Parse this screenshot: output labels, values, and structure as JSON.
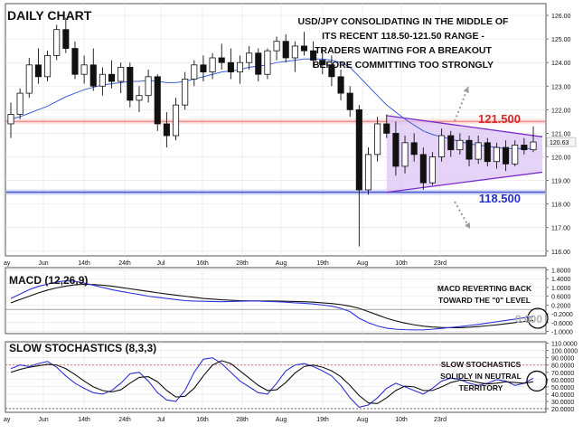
{
  "colors": {
    "frame": "#555555",
    "grid": "#e4e4e4",
    "bull_candle": "#ffffff",
    "bear_candle": "#111111",
    "ma_line": "#3c5ed8",
    "resistance": "#f28a8a",
    "support": "#4d5bd6",
    "triangle_fill": "#dcc6f4",
    "triangle_edge": "#7a2bc9",
    "macd_line": "#2d33d6",
    "signal_line": "#111111",
    "stoch_k": "#2d33d6",
    "stoch_d": "#111111",
    "overbought": "#e06060",
    "arrow": "#9a9a9a"
  },
  "chart_data": [
    {
      "type": "candlestick",
      "title": "DAILY CHART",
      "annotations": [
        "USD/JPY CONSOLIDATING IN THE MIDDLE OF",
        "ITS RECENT 118.50-121.50 RANGE -",
        "TRADERS WAITING FOR A BREAKOUT",
        "BEFORE COMMITTING TOO STRONGLY"
      ],
      "ylim": [
        115.8,
        126.5
      ],
      "y_ticks": [
        "126.00",
        "125.00",
        "124.00",
        "123.00",
        "122.00",
        "121.00",
        "120.00",
        "119.00",
        "118.00",
        "117.00",
        "116.00"
      ],
      "last_price": "120.63",
      "x_ticks": [
        "ay",
        "Jun",
        "14th",
        "24th",
        "Jul",
        "16th",
        "28th",
        "Aug",
        "19th",
        "Aug",
        "10th",
        "23rd"
      ],
      "levels": [
        {
          "name": "resistance",
          "label": "121.500",
          "value": 121.5
        },
        {
          "name": "support",
          "label": "118.500",
          "value": 118.5
        }
      ],
      "triangle": {
        "upper": [
          [
            41,
            121.75
          ],
          [
            58,
            120.85
          ]
        ],
        "lower": [
          [
            41,
            118.5
          ],
          [
            58,
            119.35
          ]
        ]
      },
      "candles": [
        {
          "o": 121.4,
          "h": 122.3,
          "l": 120.8,
          "c": 121.8
        },
        {
          "o": 121.8,
          "h": 122.9,
          "l": 121.6,
          "c": 122.7
        },
        {
          "o": 122.7,
          "h": 124.2,
          "l": 122.5,
          "c": 123.9
        },
        {
          "o": 123.9,
          "h": 124.6,
          "l": 123.1,
          "c": 123.4
        },
        {
          "o": 123.4,
          "h": 124.5,
          "l": 123.2,
          "c": 124.3
        },
        {
          "o": 124.3,
          "h": 125.6,
          "l": 124.1,
          "c": 125.4
        },
        {
          "o": 125.4,
          "h": 125.9,
          "l": 124.4,
          "c": 124.6
        },
        {
          "o": 124.6,
          "h": 124.9,
          "l": 123.3,
          "c": 123.5
        },
        {
          "o": 123.5,
          "h": 124.3,
          "l": 123.1,
          "c": 123.9
        },
        {
          "o": 123.9,
          "h": 124.6,
          "l": 122.8,
          "c": 123.0
        },
        {
          "o": 123.0,
          "h": 123.8,
          "l": 122.6,
          "c": 123.5
        },
        {
          "o": 123.5,
          "h": 124.1,
          "l": 122.9,
          "c": 123.2
        },
        {
          "o": 123.2,
          "h": 124.0,
          "l": 122.7,
          "c": 123.8
        },
        {
          "o": 123.8,
          "h": 124.0,
          "l": 122.1,
          "c": 122.4
        },
        {
          "o": 122.4,
          "h": 123.0,
          "l": 121.9,
          "c": 122.6
        },
        {
          "o": 122.6,
          "h": 123.7,
          "l": 122.3,
          "c": 123.4
        },
        {
          "o": 123.4,
          "h": 123.5,
          "l": 121.1,
          "c": 121.4
        },
        {
          "o": 121.4,
          "h": 121.9,
          "l": 120.4,
          "c": 120.9
        },
        {
          "o": 120.9,
          "h": 122.5,
          "l": 120.7,
          "c": 122.2
        },
        {
          "o": 122.2,
          "h": 123.6,
          "l": 122.0,
          "c": 123.3
        },
        {
          "o": 123.3,
          "h": 124.1,
          "l": 123.0,
          "c": 123.9
        },
        {
          "o": 123.9,
          "h": 124.3,
          "l": 123.2,
          "c": 123.6
        },
        {
          "o": 123.6,
          "h": 124.4,
          "l": 123.3,
          "c": 124.2
        },
        {
          "o": 124.2,
          "h": 124.8,
          "l": 123.7,
          "c": 124.0
        },
        {
          "o": 124.0,
          "h": 124.6,
          "l": 123.3,
          "c": 123.6
        },
        {
          "o": 123.6,
          "h": 124.3,
          "l": 123.1,
          "c": 124.0
        },
        {
          "o": 124.0,
          "h": 124.7,
          "l": 123.7,
          "c": 124.4
        },
        {
          "o": 124.4,
          "h": 124.6,
          "l": 123.2,
          "c": 123.5
        },
        {
          "o": 123.5,
          "h": 124.6,
          "l": 123.3,
          "c": 124.5
        },
        {
          "o": 124.5,
          "h": 125.1,
          "l": 124.1,
          "c": 124.9
        },
        {
          "o": 124.9,
          "h": 125.2,
          "l": 124.0,
          "c": 124.2
        },
        {
          "o": 124.2,
          "h": 124.9,
          "l": 123.6,
          "c": 124.7
        },
        {
          "o": 124.7,
          "h": 125.3,
          "l": 124.3,
          "c": 124.5
        },
        {
          "o": 124.5,
          "h": 124.9,
          "l": 123.8,
          "c": 124.1
        },
        {
          "o": 124.1,
          "h": 124.6,
          "l": 123.5,
          "c": 123.9
        },
        {
          "o": 123.9,
          "h": 124.3,
          "l": 123.0,
          "c": 123.4
        },
        {
          "o": 123.4,
          "h": 123.7,
          "l": 122.4,
          "c": 122.7
        },
        {
          "o": 122.7,
          "h": 123.0,
          "l": 121.7,
          "c": 122.0
        },
        {
          "o": 122.0,
          "h": 122.2,
          "l": 116.2,
          "c": 118.6
        },
        {
          "o": 118.6,
          "h": 120.4,
          "l": 118.4,
          "c": 120.1
        },
        {
          "o": 120.1,
          "h": 121.7,
          "l": 119.8,
          "c": 121.4
        },
        {
          "o": 121.4,
          "h": 121.8,
          "l": 120.8,
          "c": 121.0
        },
        {
          "o": 121.0,
          "h": 121.5,
          "l": 119.2,
          "c": 119.6
        },
        {
          "o": 119.6,
          "h": 120.9,
          "l": 119.3,
          "c": 120.6
        },
        {
          "o": 120.6,
          "h": 121.0,
          "l": 119.8,
          "c": 120.1
        },
        {
          "o": 120.1,
          "h": 120.4,
          "l": 118.6,
          "c": 118.9
        },
        {
          "o": 118.9,
          "h": 120.2,
          "l": 118.8,
          "c": 120.0
        },
        {
          "o": 120.0,
          "h": 121.2,
          "l": 119.8,
          "c": 120.9
        },
        {
          "o": 120.9,
          "h": 121.1,
          "l": 120.0,
          "c": 120.3
        },
        {
          "o": 120.3,
          "h": 121.0,
          "l": 120.1,
          "c": 120.7
        },
        {
          "o": 120.7,
          "h": 120.9,
          "l": 119.6,
          "c": 119.9
        },
        {
          "o": 119.9,
          "h": 120.9,
          "l": 119.7,
          "c": 120.6
        },
        {
          "o": 120.6,
          "h": 120.8,
          "l": 119.6,
          "c": 119.8
        },
        {
          "o": 119.8,
          "h": 120.6,
          "l": 119.5,
          "c": 120.4
        },
        {
          "o": 120.4,
          "h": 120.7,
          "l": 119.4,
          "c": 119.7
        },
        {
          "o": 119.7,
          "h": 120.7,
          "l": 119.6,
          "c": 120.5
        },
        {
          "o": 120.5,
          "h": 120.8,
          "l": 120.1,
          "c": 120.3
        },
        {
          "o": 120.3,
          "h": 121.3,
          "l": 120.2,
          "c": 120.63
        }
      ],
      "moving_average": [
        121.6,
        121.7,
        121.85,
        122.0,
        122.15,
        122.35,
        122.55,
        122.7,
        122.85,
        122.95,
        123.05,
        123.1,
        123.15,
        123.2,
        123.2,
        123.25,
        123.2,
        123.15,
        123.15,
        123.2,
        123.3,
        123.4,
        123.5,
        123.6,
        123.65,
        123.7,
        123.8,
        123.85,
        123.9,
        124.0,
        124.05,
        124.1,
        124.15,
        124.15,
        124.15,
        124.1,
        124.0,
        123.8,
        123.4,
        123.0,
        122.6,
        122.2,
        121.9,
        121.6,
        121.35,
        121.1,
        120.95,
        120.85,
        120.75,
        120.65,
        120.55,
        120.5,
        120.45,
        120.4,
        120.35,
        120.35,
        120.35,
        120.35
      ]
    },
    {
      "type": "line",
      "title": "MACD (12,26,9)",
      "annotations": [
        "MACD REVERTING BACK",
        "TOWARD THE \"0\" LEVEL"
      ],
      "zero_label": "0.000",
      "ylim": [
        -1.1,
        1.9
      ],
      "y_ticks": [
        "1.8000",
        "1.4000",
        "1.0000",
        "0.6000",
        "0.2000",
        "-0.2000",
        "-0.6000",
        "-1.0000"
      ],
      "series": [
        {
          "values": [
            0.5,
            0.7,
            0.9,
            1.05,
            1.15,
            1.25,
            1.3,
            1.28,
            1.2,
            1.1,
            1.0,
            0.9,
            0.82,
            0.75,
            0.68,
            0.6,
            0.55,
            0.5,
            0.45,
            0.4,
            0.38,
            0.37,
            0.36,
            0.35,
            0.36,
            0.37,
            0.38,
            0.38,
            0.36,
            0.35,
            0.33,
            0.3,
            0.28,
            0.25,
            0.2,
            0.15,
            0.05,
            -0.1,
            -0.4,
            -0.6,
            -0.75,
            -0.85,
            -0.9,
            -0.92,
            -0.93,
            -0.93,
            -0.9,
            -0.86,
            -0.82,
            -0.78,
            -0.73,
            -0.68,
            -0.62,
            -0.56,
            -0.5,
            -0.44,
            -0.38,
            -0.32
          ]
        },
        {
          "values": [
            0.3,
            0.45,
            0.6,
            0.75,
            0.88,
            0.98,
            1.06,
            1.12,
            1.14,
            1.13,
            1.1,
            1.06,
            1.0,
            0.94,
            0.88,
            0.82,
            0.76,
            0.7,
            0.65,
            0.6,
            0.55,
            0.5,
            0.47,
            0.44,
            0.42,
            0.4,
            0.39,
            0.39,
            0.38,
            0.38,
            0.37,
            0.36,
            0.35,
            0.33,
            0.3,
            0.27,
            0.22,
            0.15,
            0.05,
            -0.1,
            -0.25,
            -0.4,
            -0.52,
            -0.62,
            -0.7,
            -0.76,
            -0.8,
            -0.82,
            -0.83,
            -0.83,
            -0.81,
            -0.78,
            -0.74,
            -0.7,
            -0.65,
            -0.6,
            -0.55,
            -0.5
          ]
        }
      ]
    },
    {
      "type": "line",
      "title": "SLOW STOCHASTICS (8,3,3)",
      "annotations": [
        "SLOW STOCHASTICS",
        "SOLIDLY IN NEUTRAL",
        "TERRITORY"
      ],
      "ylim": [
        15,
        112
      ],
      "y_ticks": [
        "110.0000",
        "100.0000",
        "90.0000",
        "80.0000",
        "70.0000",
        "60.0000",
        "50.0000",
        "40.0000",
        "30.0000",
        "20.0000"
      ],
      "overbought": 80,
      "oversold": 20,
      "series": [
        {
          "values": [
            75,
            80,
            78,
            82,
            85,
            77,
            65,
            55,
            48,
            42,
            40,
            45,
            55,
            68,
            70,
            58,
            42,
            32,
            30,
            45,
            70,
            88,
            90,
            82,
            70,
            58,
            50,
            42,
            40,
            55,
            72,
            80,
            82,
            78,
            72,
            65,
            52,
            35,
            22,
            25,
            35,
            48,
            55,
            50,
            45,
            40,
            48,
            58,
            62,
            60,
            55,
            52,
            55,
            60,
            58,
            52,
            55,
            62
          ]
        },
        {
          "values": [
            70,
            74,
            77,
            79,
            81,
            80,
            75,
            67,
            58,
            50,
            45,
            43,
            46,
            55,
            63,
            64,
            57,
            45,
            36,
            37,
            48,
            65,
            80,
            86,
            82,
            72,
            62,
            52,
            45,
            46,
            56,
            69,
            78,
            80,
            77,
            72,
            64,
            52,
            38,
            28,
            27,
            35,
            45,
            51,
            50,
            45,
            45,
            50,
            56,
            59,
            59,
            56,
            54,
            55,
            57,
            56,
            55,
            57
          ]
        }
      ],
      "x_ticks": [
        "ay",
        "Jun",
        "14th",
        "24th",
        "Jul",
        "16th",
        "28th",
        "Aug",
        "19th",
        "Aug",
        "10th",
        "23rd"
      ]
    }
  ]
}
